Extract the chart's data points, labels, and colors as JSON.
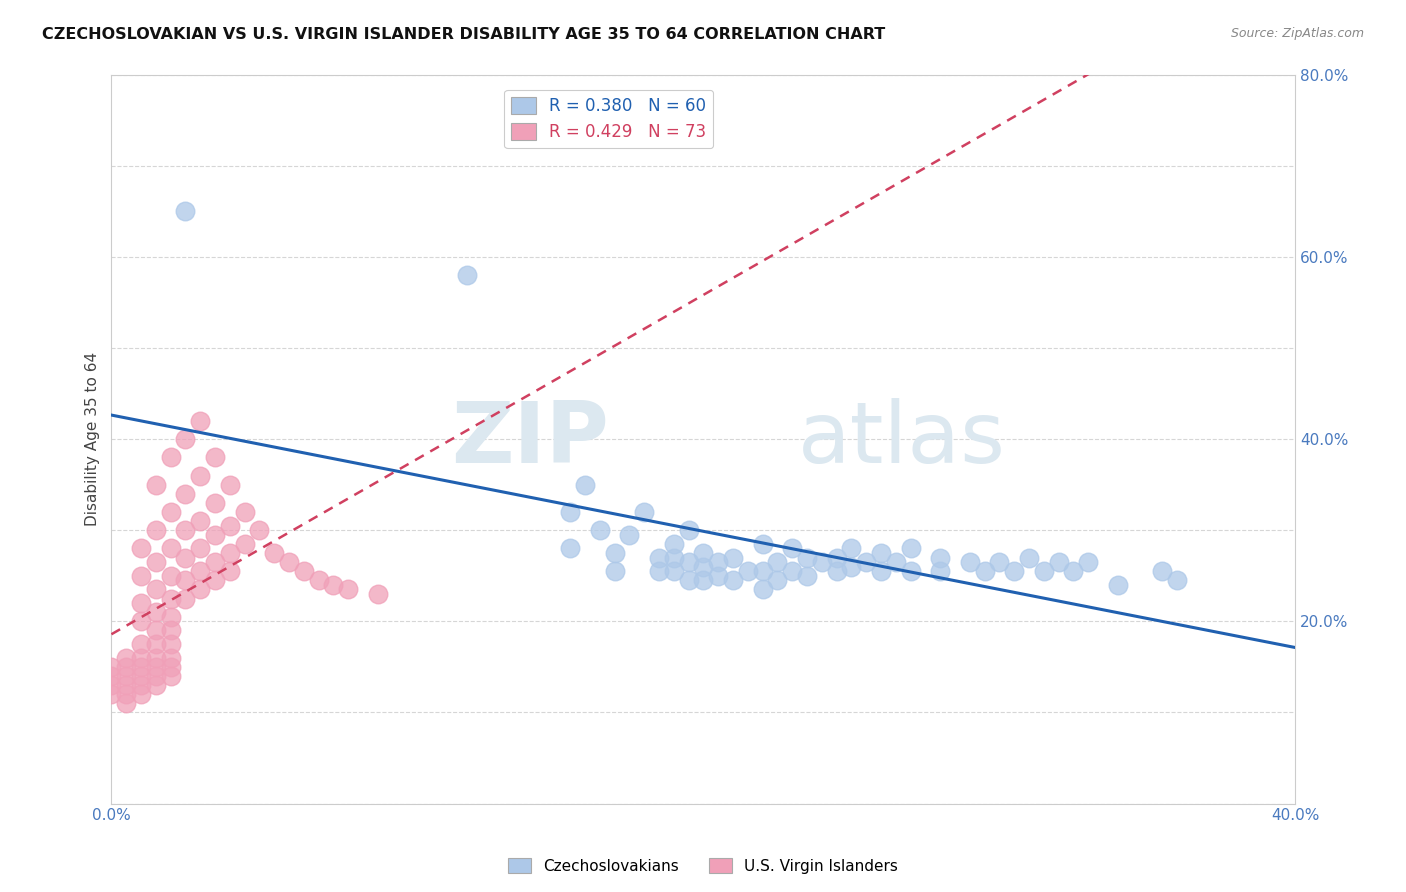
{
  "title": "CZECHOSLOVAKIAN VS U.S. VIRGIN ISLANDER DISABILITY AGE 35 TO 64 CORRELATION CHART",
  "source": "Source: ZipAtlas.com",
  "ylabel": "Disability Age 35 to 64",
  "xlim": [
    0.0,
    0.4
  ],
  "ylim": [
    0.0,
    0.8
  ],
  "blue_R": 0.38,
  "blue_N": 60,
  "pink_R": 0.429,
  "pink_N": 73,
  "blue_color": "#adc8e8",
  "pink_color": "#f0a0b8",
  "blue_line_color": "#2060b0",
  "pink_line_color": "#d04060",
  "watermark_zip": "ZIP",
  "watermark_atlas": "atlas",
  "legend_label_blue": "Czechoslovakians",
  "legend_label_pink": "U.S. Virgin Islanders",
  "blue_scatter": [
    [
      0.025,
      0.65
    ],
    [
      0.12,
      0.58
    ],
    [
      0.155,
      0.32
    ],
    [
      0.155,
      0.28
    ],
    [
      0.16,
      0.35
    ],
    [
      0.165,
      0.3
    ],
    [
      0.17,
      0.275
    ],
    [
      0.17,
      0.255
    ],
    [
      0.175,
      0.295
    ],
    [
      0.18,
      0.32
    ],
    [
      0.185,
      0.27
    ],
    [
      0.185,
      0.255
    ],
    [
      0.19,
      0.285
    ],
    [
      0.19,
      0.27
    ],
    [
      0.19,
      0.255
    ],
    [
      0.195,
      0.3
    ],
    [
      0.195,
      0.265
    ],
    [
      0.195,
      0.245
    ],
    [
      0.2,
      0.275
    ],
    [
      0.2,
      0.26
    ],
    [
      0.2,
      0.245
    ],
    [
      0.205,
      0.265
    ],
    [
      0.205,
      0.25
    ],
    [
      0.21,
      0.27
    ],
    [
      0.21,
      0.245
    ],
    [
      0.215,
      0.255
    ],
    [
      0.22,
      0.285
    ],
    [
      0.22,
      0.255
    ],
    [
      0.22,
      0.235
    ],
    [
      0.225,
      0.265
    ],
    [
      0.225,
      0.245
    ],
    [
      0.23,
      0.28
    ],
    [
      0.23,
      0.255
    ],
    [
      0.235,
      0.27
    ],
    [
      0.235,
      0.25
    ],
    [
      0.24,
      0.265
    ],
    [
      0.245,
      0.27
    ],
    [
      0.245,
      0.255
    ],
    [
      0.25,
      0.28
    ],
    [
      0.25,
      0.26
    ],
    [
      0.255,
      0.265
    ],
    [
      0.26,
      0.275
    ],
    [
      0.26,
      0.255
    ],
    [
      0.265,
      0.265
    ],
    [
      0.27,
      0.28
    ],
    [
      0.27,
      0.255
    ],
    [
      0.28,
      0.27
    ],
    [
      0.28,
      0.255
    ],
    [
      0.29,
      0.265
    ],
    [
      0.295,
      0.255
    ],
    [
      0.3,
      0.265
    ],
    [
      0.305,
      0.255
    ],
    [
      0.31,
      0.27
    ],
    [
      0.315,
      0.255
    ],
    [
      0.32,
      0.265
    ],
    [
      0.325,
      0.255
    ],
    [
      0.33,
      0.265
    ],
    [
      0.34,
      0.24
    ],
    [
      0.355,
      0.255
    ],
    [
      0.36,
      0.245
    ]
  ],
  "pink_scatter": [
    [
      0.0,
      0.15
    ],
    [
      0.0,
      0.14
    ],
    [
      0.0,
      0.13
    ],
    [
      0.0,
      0.12
    ],
    [
      0.005,
      0.16
    ],
    [
      0.005,
      0.15
    ],
    [
      0.005,
      0.14
    ],
    [
      0.005,
      0.13
    ],
    [
      0.005,
      0.12
    ],
    [
      0.005,
      0.11
    ],
    [
      0.01,
      0.28
    ],
    [
      0.01,
      0.25
    ],
    [
      0.01,
      0.22
    ],
    [
      0.01,
      0.2
    ],
    [
      0.01,
      0.175
    ],
    [
      0.01,
      0.16
    ],
    [
      0.01,
      0.15
    ],
    [
      0.01,
      0.14
    ],
    [
      0.01,
      0.13
    ],
    [
      0.01,
      0.12
    ],
    [
      0.015,
      0.35
    ],
    [
      0.015,
      0.3
    ],
    [
      0.015,
      0.265
    ],
    [
      0.015,
      0.235
    ],
    [
      0.015,
      0.21
    ],
    [
      0.015,
      0.19
    ],
    [
      0.015,
      0.175
    ],
    [
      0.015,
      0.16
    ],
    [
      0.015,
      0.15
    ],
    [
      0.015,
      0.14
    ],
    [
      0.015,
      0.13
    ],
    [
      0.02,
      0.38
    ],
    [
      0.02,
      0.32
    ],
    [
      0.02,
      0.28
    ],
    [
      0.02,
      0.25
    ],
    [
      0.02,
      0.225
    ],
    [
      0.02,
      0.205
    ],
    [
      0.02,
      0.19
    ],
    [
      0.02,
      0.175
    ],
    [
      0.02,
      0.16
    ],
    [
      0.02,
      0.15
    ],
    [
      0.02,
      0.14
    ],
    [
      0.025,
      0.4
    ],
    [
      0.025,
      0.34
    ],
    [
      0.025,
      0.3
    ],
    [
      0.025,
      0.27
    ],
    [
      0.025,
      0.245
    ],
    [
      0.025,
      0.225
    ],
    [
      0.03,
      0.42
    ],
    [
      0.03,
      0.36
    ],
    [
      0.03,
      0.31
    ],
    [
      0.03,
      0.28
    ],
    [
      0.03,
      0.255
    ],
    [
      0.03,
      0.235
    ],
    [
      0.035,
      0.38
    ],
    [
      0.035,
      0.33
    ],
    [
      0.035,
      0.295
    ],
    [
      0.035,
      0.265
    ],
    [
      0.035,
      0.245
    ],
    [
      0.04,
      0.35
    ],
    [
      0.04,
      0.305
    ],
    [
      0.04,
      0.275
    ],
    [
      0.04,
      0.255
    ],
    [
      0.045,
      0.32
    ],
    [
      0.045,
      0.285
    ],
    [
      0.05,
      0.3
    ],
    [
      0.055,
      0.275
    ],
    [
      0.06,
      0.265
    ],
    [
      0.065,
      0.255
    ],
    [
      0.07,
      0.245
    ],
    [
      0.075,
      0.24
    ],
    [
      0.08,
      0.235
    ],
    [
      0.09,
      0.23
    ]
  ]
}
